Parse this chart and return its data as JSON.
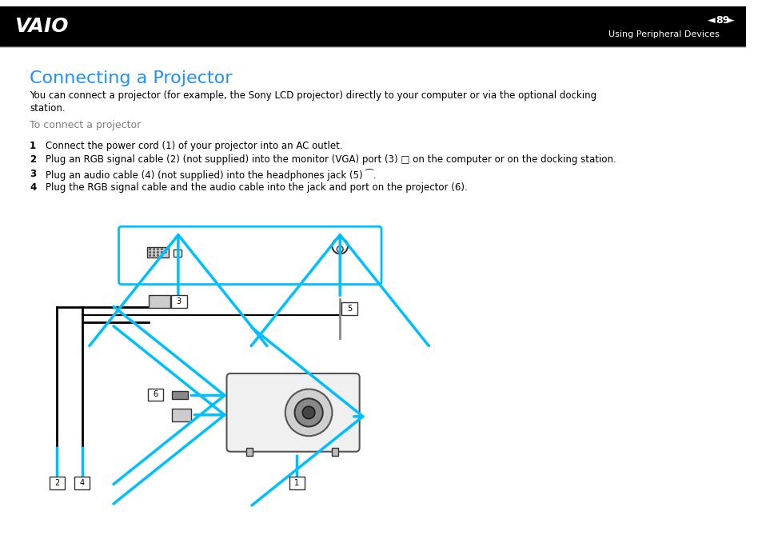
{
  "bg_color": "#ffffff",
  "header_bg": "#000000",
  "header_text_color": "#ffffff",
  "header_page": "89",
  "header_subtitle": "Using Peripheral Devices",
  "title": "Connecting a Projector",
  "title_color": "#1e90ff",
  "title_fontsize": 16,
  "body_text_color": "#000000",
  "gray_text_color": "#808080",
  "intro_text": "You can connect a projector (for example, the Sony LCD projector) directly to your computer or via the optional docking\nstation.",
  "subheading": "To connect a projector",
  "steps": [
    "Connect the power cord (1) of your projector into an AC outlet.",
    "Plug an RGB signal cable (2) (not supplied) into the monitor (VGA) port (3) □ on the computer or on the docking station.",
    "Plug an audio cable (4) (not supplied) into the headphones jack (5) ⁀.",
    "Plug the RGB signal cable and the audio cable into the jack and port on the projector (6)."
  ],
  "cyan_color": "#00bfff",
  "arrow_color": "#00bfff",
  "cable_color": "#000000",
  "label_box_color": "#000000",
  "label_fill": "#ffffff"
}
